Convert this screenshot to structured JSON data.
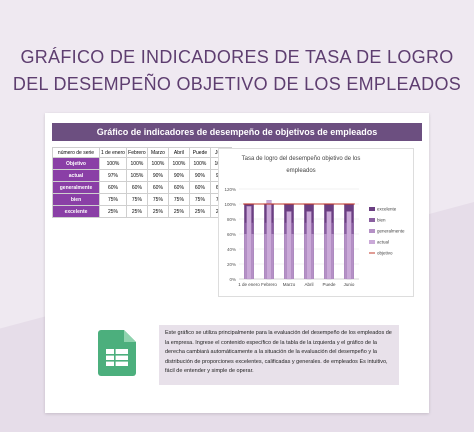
{
  "heading": {
    "line1": "GRÁFICO DE INDICADORES DE TASA DE LOGRO",
    "line2": "DEL DESEMPEÑO OBJETIVO DE LOS EMPLEADOS"
  },
  "sheet": {
    "banner": "Gráfico de indicadores de desempeño de objetivos de empleados",
    "table": {
      "corner": "número de serie",
      "months": [
        "1 de enero",
        "Febrero",
        "Marzo",
        "Abril",
        "Puede",
        "Junio"
      ],
      "rows": [
        {
          "label": "Objetivo",
          "values": [
            "100%",
            "100%",
            "100%",
            "100%",
            "100%",
            "100%"
          ]
        },
        {
          "label": "actual",
          "values": [
            "97%",
            "105%",
            "90%",
            "90%",
            "90%",
            "90%"
          ]
        },
        {
          "label": "generalmente",
          "values": [
            "60%",
            "60%",
            "60%",
            "60%",
            "60%",
            "60%"
          ]
        },
        {
          "label": "bien",
          "values": [
            "75%",
            "75%",
            "75%",
            "75%",
            "75%",
            "75%"
          ]
        },
        {
          "label": "excelente",
          "values": [
            "25%",
            "25%",
            "25%",
            "25%",
            "25%",
            "25%"
          ]
        }
      ]
    },
    "info_text": "Este gráfico se utiliza principalmente para la evaluación del desempeño de los empleados de la empresa. Ingrese el contenido específico de la tabla de la izquierda y el gráfico de la derecha cambiará automáticamente a la situación de la evaluación del desempeño y la distribución de proporciones excelentes, calificadas y generales. de empleados Es intuitivo, fácil de entender y simple de operar."
  },
  "chart_data": {
    "type": "bar",
    "title_line1": "Tasa de logro del desempeño objetivo de los",
    "title_line2": "empleados",
    "categories": [
      "1 de enero",
      "Febrero",
      "Marzo",
      "Abril",
      "Puede",
      "Junio"
    ],
    "yticks": [
      "0%",
      "20%",
      "40%",
      "60%",
      "80%",
      "100%",
      "120%"
    ],
    "ylim": [
      0,
      120
    ],
    "series": [
      {
        "name": "excelente",
        "values": [
          100,
          100,
          100,
          100,
          100,
          100
        ],
        "color": "#6b3f82"
      },
      {
        "name": "bien",
        "values": [
          75,
          75,
          75,
          75,
          75,
          75
        ],
        "color": "#8a5fa0"
      },
      {
        "name": "generalmente",
        "values": [
          60,
          60,
          60,
          60,
          60,
          60
        ],
        "color": "#b591c6"
      },
      {
        "name": "actual",
        "values": [
          97,
          105,
          90,
          90,
          90,
          90
        ],
        "color": "#caa9d8"
      },
      {
        "name": "objetivo",
        "values": [
          100,
          100,
          100,
          100,
          100,
          100
        ],
        "color": "#c0392b"
      }
    ]
  }
}
